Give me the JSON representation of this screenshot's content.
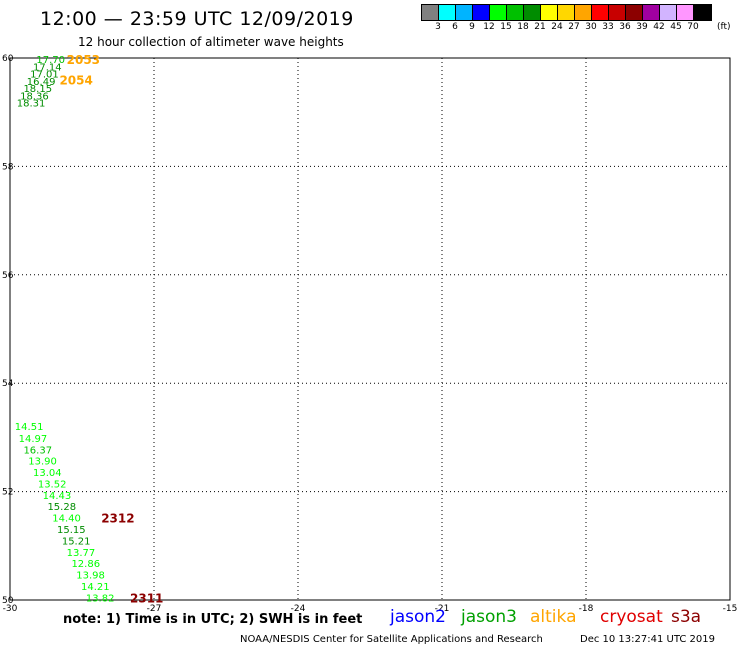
{
  "header": {
    "title": "12:00 — 23:59 UTC 12/09/2019",
    "subtitle": "12 hour collection of altimeter wave heights"
  },
  "legend": {
    "colors": [
      "#808080",
      "#00ffff",
      "#00b4ff",
      "#0000ff",
      "#00ff00",
      "#00c000",
      "#008c00",
      "#ffff00",
      "#ffd700",
      "#ffa500",
      "#ff0000",
      "#c80000",
      "#8c0000",
      "#a000a0",
      "#d2b4ff",
      "#ff96ff",
      "#000000"
    ],
    "ticks": [
      "3",
      "6",
      "9",
      "12",
      "15",
      "18",
      "21",
      "24",
      "27",
      "30",
      "33",
      "36",
      "39",
      "42",
      "45",
      "70"
    ],
    "unit": "(ft)"
  },
  "chart_data": {
    "type": "scatter",
    "xlim": [
      -30,
      -15
    ],
    "ylim": [
      50,
      60
    ],
    "x_ticks": [
      -30,
      -27,
      -24,
      -21,
      -18,
      -15
    ],
    "y_ticks": [
      50,
      52,
      54,
      56,
      58,
      60
    ],
    "x_tick_labels": [
      "-30",
      "-27",
      "-24",
      "-21",
      "-18",
      "-15"
    ],
    "y_tick_labels": [
      "50",
      "52",
      "54",
      "56",
      "58",
      "60"
    ],
    "grid": true,
    "points": [
      {
        "lon": -29.45,
        "lat": 59.98,
        "value": "17.70",
        "color": "#00c000"
      },
      {
        "lon": -29.52,
        "lat": 59.84,
        "value": "17.14",
        "color": "#008c00"
      },
      {
        "lon": -29.58,
        "lat": 59.71,
        "value": "17.01",
        "color": "#008c00"
      },
      {
        "lon": -29.65,
        "lat": 59.58,
        "value": "16.49",
        "color": "#008c00"
      },
      {
        "lon": -29.72,
        "lat": 59.45,
        "value": "18.15",
        "color": "#008c00"
      },
      {
        "lon": -29.79,
        "lat": 59.31,
        "value": "18.36",
        "color": "#008c00"
      },
      {
        "lon": -29.86,
        "lat": 59.18,
        "value": "18.31",
        "color": "#008c00"
      },
      {
        "lon": -29.9,
        "lat": 53.21,
        "value": "14.51",
        "color": "#00ff00"
      },
      {
        "lon": -29.82,
        "lat": 52.99,
        "value": "14.97",
        "color": "#00ff00"
      },
      {
        "lon": -29.72,
        "lat": 52.78,
        "value": "16.37",
        "color": "#00c000"
      },
      {
        "lon": -29.62,
        "lat": 52.57,
        "value": "13.90",
        "color": "#00ff00"
      },
      {
        "lon": -29.52,
        "lat": 52.36,
        "value": "13.04",
        "color": "#00ff00"
      },
      {
        "lon": -29.42,
        "lat": 52.15,
        "value": "13.52",
        "color": "#00ff00"
      },
      {
        "lon": -29.32,
        "lat": 51.94,
        "value": "14.43",
        "color": "#00ff00"
      },
      {
        "lon": -29.22,
        "lat": 51.73,
        "value": "15.28",
        "color": "#008c00"
      },
      {
        "lon": -29.12,
        "lat": 51.52,
        "value": "14.40",
        "color": "#00ff00"
      },
      {
        "lon": -29.02,
        "lat": 51.31,
        "value": "15.15",
        "color": "#008c00"
      },
      {
        "lon": -28.92,
        "lat": 51.1,
        "value": "15.21",
        "color": "#008c00"
      },
      {
        "lon": -28.82,
        "lat": 50.89,
        "value": "13.77",
        "color": "#00ff00"
      },
      {
        "lon": -28.72,
        "lat": 50.68,
        "value": "12.86",
        "color": "#00ff00"
      },
      {
        "lon": -28.62,
        "lat": 50.47,
        "value": "13.98",
        "color": "#00ff00"
      },
      {
        "lon": -28.52,
        "lat": 50.26,
        "value": "14.21",
        "color": "#00ff00"
      },
      {
        "lon": -28.42,
        "lat": 50.05,
        "value": "13.82",
        "color": "#00ff00"
      }
    ],
    "time_labels": [
      {
        "lon": -28.82,
        "lat": 59.98,
        "text": "2053",
        "color": "#ffa500"
      },
      {
        "lon": -28.97,
        "lat": 59.6,
        "text": "2054",
        "color": "#ffa500"
      },
      {
        "lon": -28.1,
        "lat": 51.52,
        "text": "2312",
        "color": "#8c0000"
      },
      {
        "lon": -27.5,
        "lat": 50.05,
        "text": "2311",
        "color": "#8c0000"
      }
    ]
  },
  "note": "note: 1) Time is in UTC; 2) SWH is in feet",
  "satellites": [
    {
      "name": "jason2",
      "color": "#0000ff"
    },
    {
      "name": "jason3",
      "color": "#00a000"
    },
    {
      "name": "altika",
      "color": "#ffa500"
    },
    {
      "name": "cryosat",
      "color": "#e00000"
    },
    {
      "name": "s3a",
      "color": "#8c0000"
    }
  ],
  "footer": {
    "credit": "NOAA/NESDIS Center for Satellite Applications and Research",
    "timestamp": "Dec 10 13:27:41 UTC 2019"
  }
}
